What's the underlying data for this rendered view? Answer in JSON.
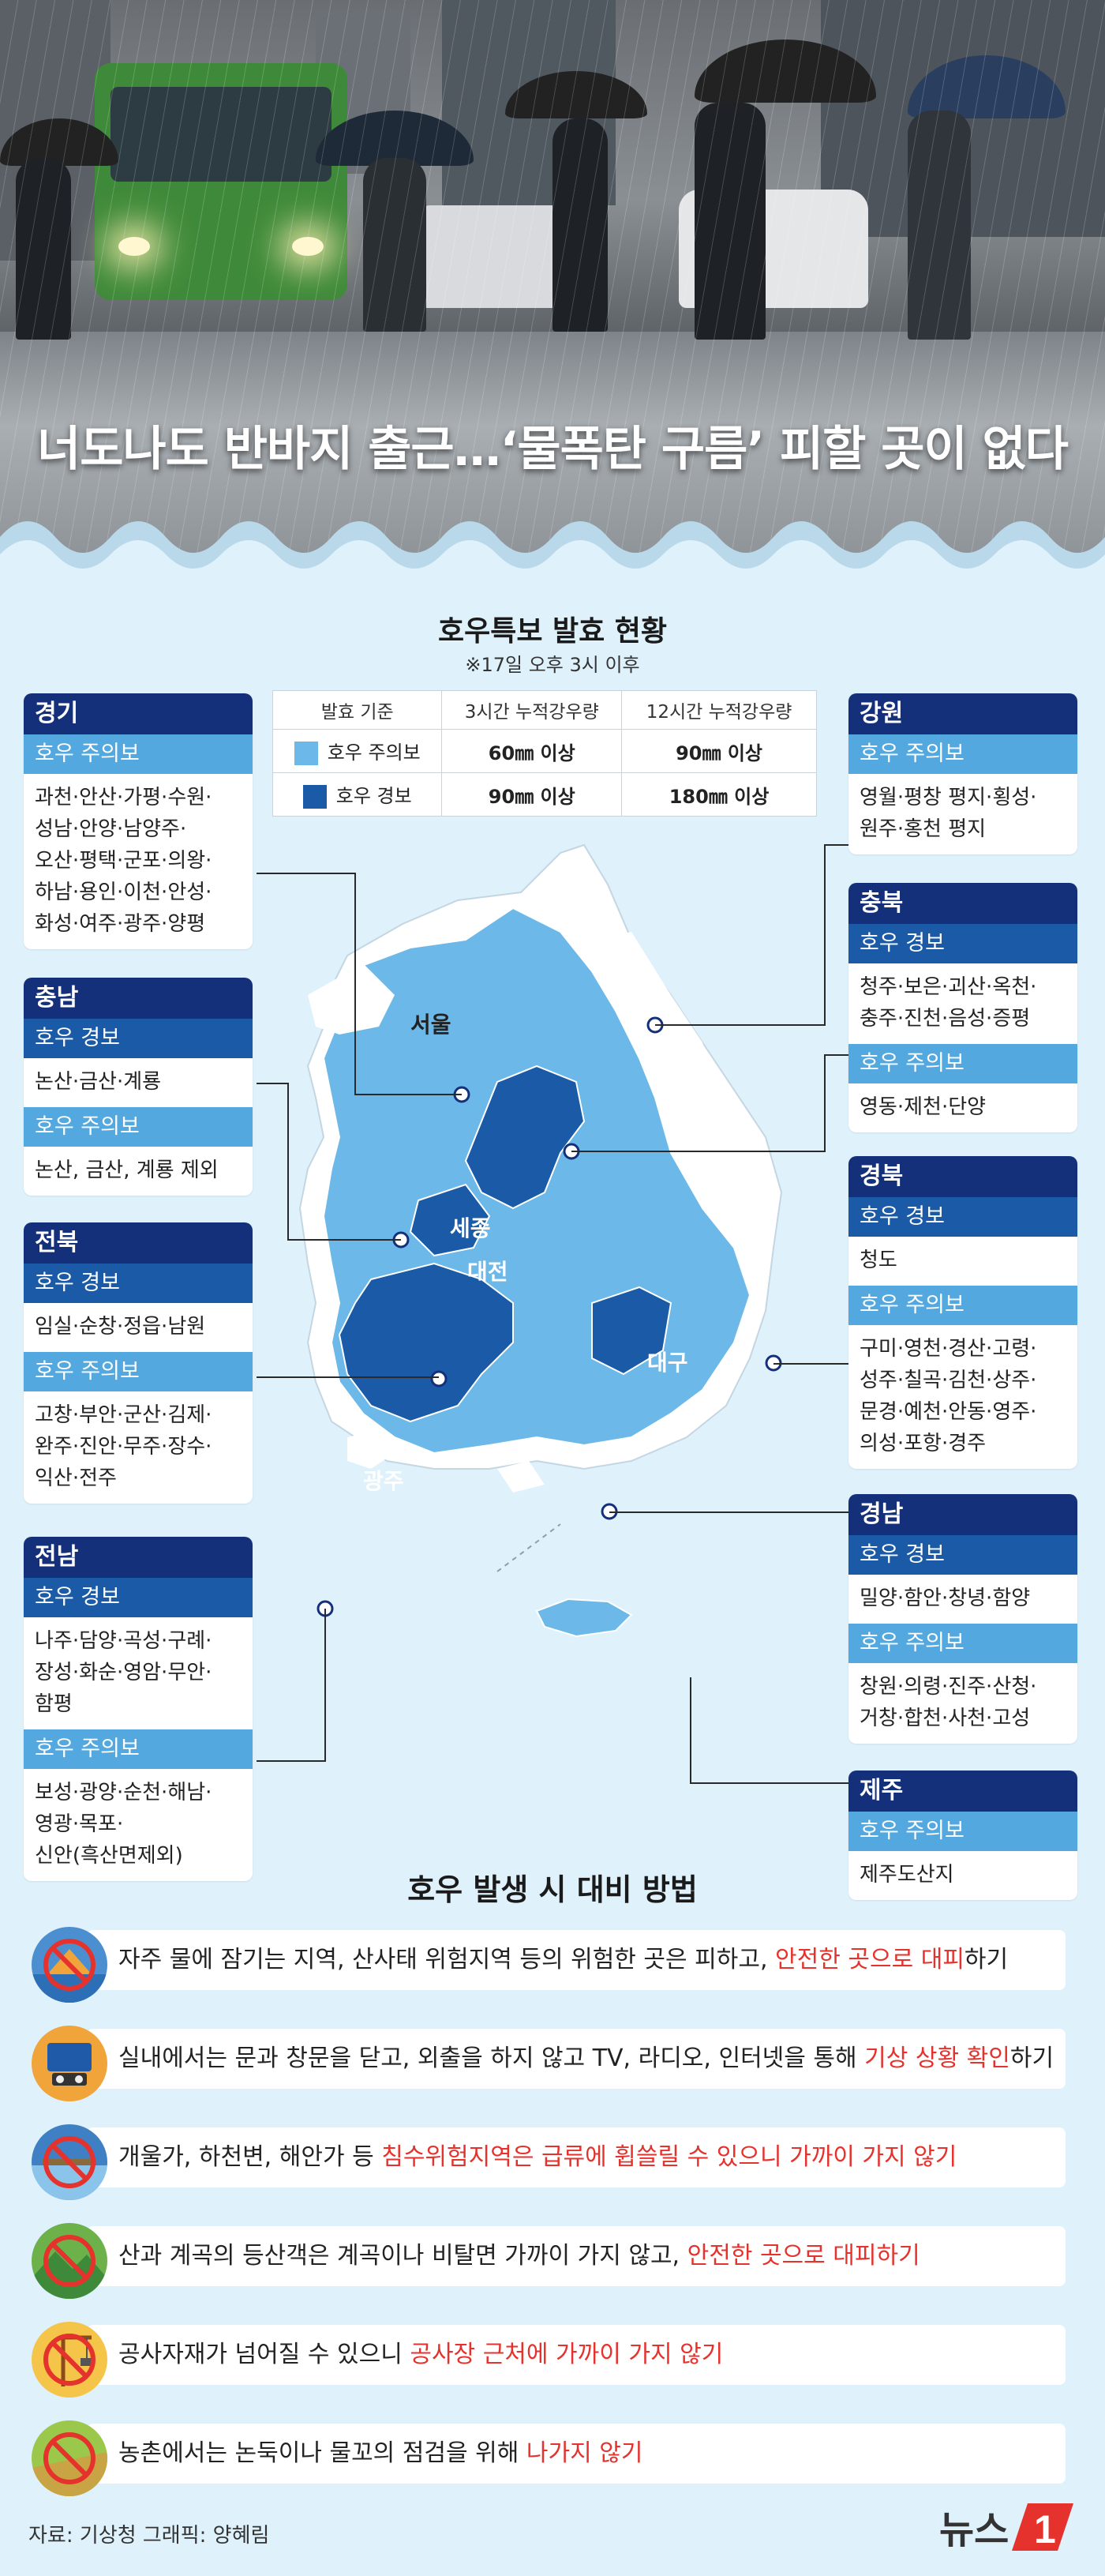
{
  "headline": "너도나도 반바지 출근…‘물폭탄 구름’ 피할 곳이 없다",
  "section": {
    "title": "호우특보 발효 현황",
    "subtitle": "※17일 오후 3시 이후"
  },
  "legend": {
    "header": [
      "발효 기준",
      "3시간 누적강우량",
      "12시간 누적강우량"
    ],
    "rows": [
      {
        "label": "호우 주의보",
        "color": "#6cb8e8",
        "v3": "60㎜ 이상",
        "v12": "90㎜ 이상"
      },
      {
        "label": "호우 경보",
        "color": "#1a5aa6",
        "v3": "90㎜ 이상",
        "v12": "180㎜ 이상"
      }
    ]
  },
  "map_labels": {
    "seoul": "서울",
    "sejong": "세종",
    "daejeon": "대전",
    "daegu": "대구",
    "gwangju": "광주"
  },
  "regions": {
    "gyeonggi": {
      "name": "경기",
      "adv_label": "호우 주의보",
      "adv": [
        "과천·안산·가평·수원·",
        "성남·안양·남양주·",
        "오산·평택·군포·의왕·",
        "하남·용인·이천·안성·",
        "화성·여주·광주·양평"
      ]
    },
    "chungnam": {
      "name": "충남",
      "warn_label": "호우 경보",
      "warn": [
        "논산·금산·계룡"
      ],
      "adv_label": "호우 주의보",
      "adv": [
        "논산, 금산, 계룡 제외"
      ]
    },
    "jeonbuk": {
      "name": "전북",
      "warn_label": "호우 경보",
      "warn": [
        "임실·순창·정읍·남원"
      ],
      "adv_label": "호우 주의보",
      "adv": [
        "고창·부안·군산·김제·",
        "완주·진안·무주·장수·",
        "익산·전주"
      ]
    },
    "jeonnam": {
      "name": "전남",
      "warn_label": "호우 경보",
      "warn": [
        "나주·담양·곡성·구례·",
        "장성·화순·영암·무안·",
        "함평"
      ],
      "adv_label": "호우 주의보",
      "adv": [
        "보성·광양·순천·해남·",
        "영광·목포·",
        "신안(흑산면제외)"
      ]
    },
    "gangwon": {
      "name": "강원",
      "adv_label": "호우 주의보",
      "adv": [
        "영월·평창 평지·횡성·",
        "원주·홍천 평지"
      ]
    },
    "chungbuk": {
      "name": "충북",
      "warn_label": "호우 경보",
      "warn": [
        "청주·보은·괴산·옥천·",
        "충주·진천·음성·증평"
      ],
      "adv_label": "호우 주의보",
      "adv": [
        "영동·제천·단양"
      ]
    },
    "gyeongbuk": {
      "name": "경북",
      "warn_label": "호우 경보",
      "warn": [
        "청도"
      ],
      "adv_label": "호우 주의보",
      "adv": [
        "구미·영천·경산·고령·",
        "성주·칠곡·김천·상주·",
        "문경·예천·안동·영주·",
        "의성·포항·경주"
      ]
    },
    "gyeongnam": {
      "name": "경남",
      "warn_label": "호우 경보",
      "warn": [
        "밀양·함안·창녕·함양"
      ],
      "adv_label": "호우 주의보",
      "adv": [
        "창원·의령·진주·산청·",
        "거창·합천·사천·고성"
      ]
    },
    "jeju": {
      "name": "제주",
      "adv_label": "호우 주의보",
      "adv": [
        "제주도산지"
      ]
    }
  },
  "measures": {
    "title": "호우 발생 시 대비 방법",
    "items": [
      {
        "icon": "flooded-area-icon",
        "pre": "자주 물에 잠기는 지역, 산사태 위험지역 등의 위험한 곳은 피하고, ",
        "red": "안전한 곳으로 대피",
        "post": "하기"
      },
      {
        "icon": "tv-radio-icon",
        "pre": "실내에서는 문과 창문을 닫고, 외출을 하지 않고 TV, 라디오, 인터넷을 통해 ",
        "red": "기상 상황 확인",
        "post": "하기"
      },
      {
        "icon": "no-riverside-icon",
        "pre": "개울가, 하천변, 해안가 등 ",
        "red": "침수위험지역은 급류에 휩쓸릴 수 있으니 가까이 가지 않기",
        "post": ""
      },
      {
        "icon": "no-valley-icon",
        "pre": "산과 계곡의 등산객은 계곡이나 비탈면 가까이 가지 않고, ",
        "red": "안전한 곳으로 대피하기",
        "post": ""
      },
      {
        "icon": "construction-crane-icon",
        "pre": "공사자재가 넘어질 수 있으니 ",
        "red": "공사장 근처에 가까이 가지 않기",
        "post": ""
      },
      {
        "icon": "no-farmland-icon",
        "pre": "농촌에서는 논둑이나 물꼬의 점검을 위해 ",
        "red": "나가지 않기",
        "post": ""
      }
    ]
  },
  "source": "자료: 기상청  그래픽: 양혜림",
  "logo_text": "뉴스1",
  "colors": {
    "warning": "#1a5aa6",
    "advisory": "#52a8df",
    "header": "#14307a",
    "highlight": "#e5322d"
  }
}
